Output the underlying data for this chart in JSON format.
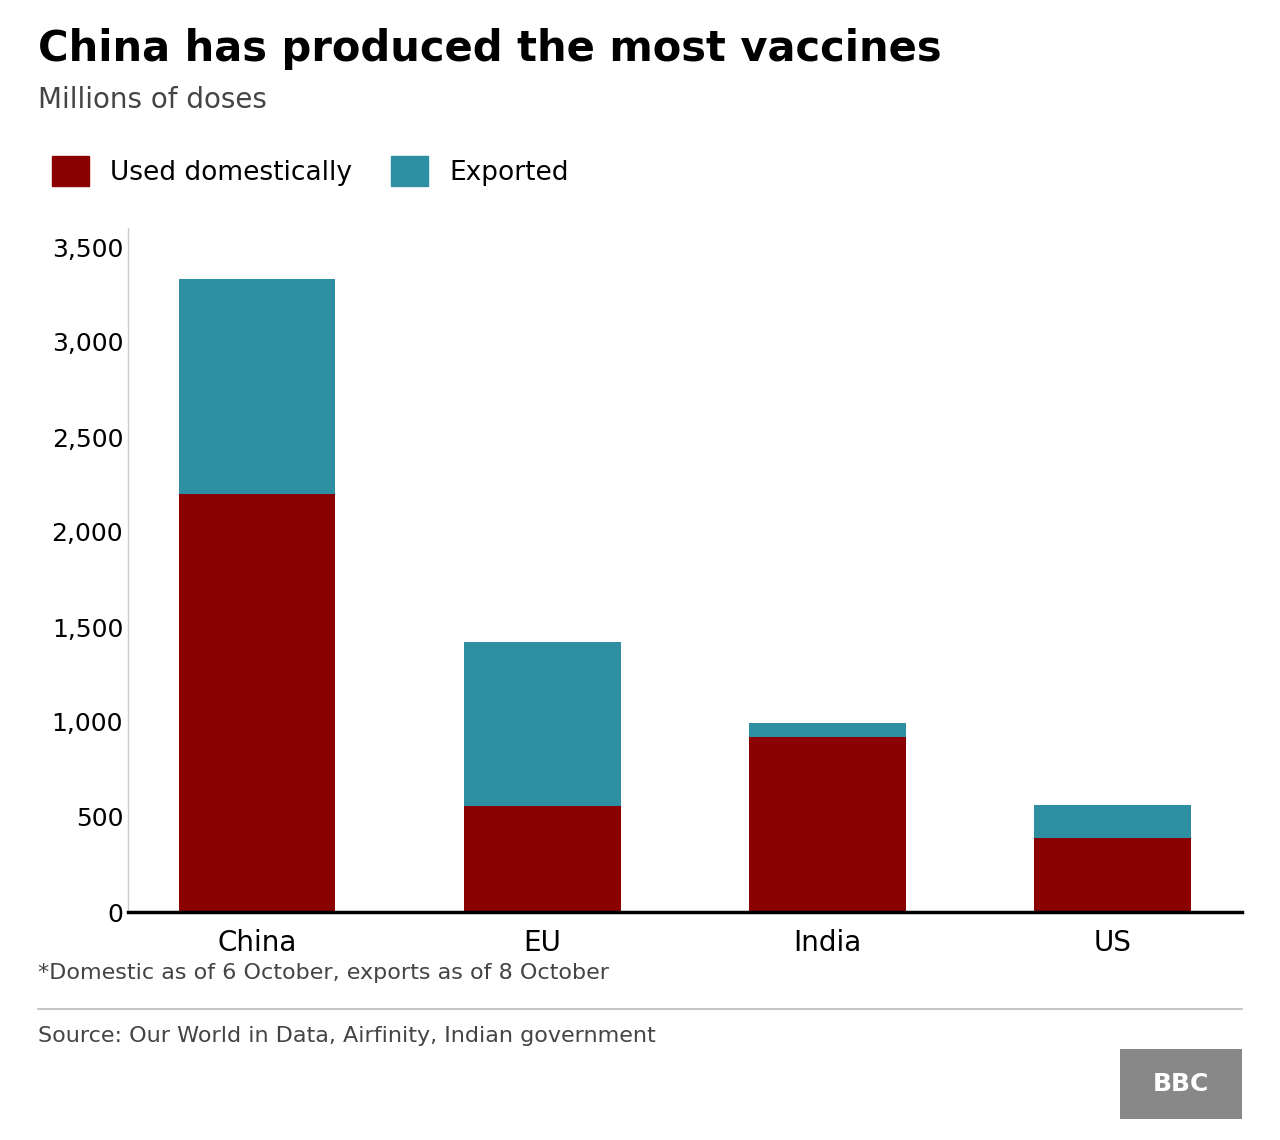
{
  "title": "China has produced the most vaccines",
  "subtitle": "Millions of doses",
  "categories": [
    "China",
    "EU",
    "India",
    "US"
  ],
  "domestic": [
    2200,
    560,
    920,
    390
  ],
  "exported": [
    1130,
    860,
    75,
    175
  ],
  "color_domestic": "#8B0000",
  "color_exported": "#2E8FA3",
  "ylim": [
    0,
    3600
  ],
  "yticks": [
    0,
    500,
    1000,
    1500,
    2000,
    2500,
    3000,
    3500
  ],
  "legend_domestic": "Used domestically",
  "legend_exported": "Exported",
  "footnote": "*Domestic as of 6 October, exports as of 8 October",
  "source": "Source: Our World in Data, Airfinity, Indian government",
  "bbc_logo": "BBC",
  "background_color": "#ffffff",
  "title_fontsize": 30,
  "subtitle_fontsize": 20,
  "tick_fontsize": 18,
  "xtick_fontsize": 20,
  "legend_fontsize": 19,
  "footnote_fontsize": 16,
  "source_fontsize": 16,
  "bar_width": 0.55
}
